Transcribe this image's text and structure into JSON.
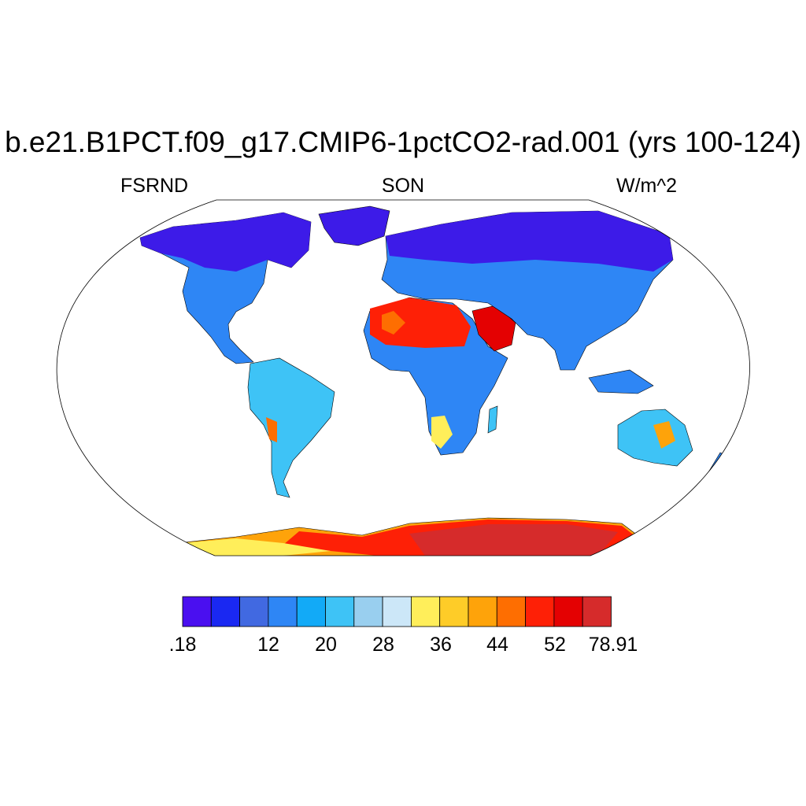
{
  "title": "b.e21.B1PCT.f09_g17.CMIP6-1pctCO2-rad.001 (yrs 100-124)",
  "variable": "FSRND",
  "season": "SON",
  "units": "W/m^2",
  "colorbar": {
    "colors": [
      "#4a0ff0",
      "#1a28f2",
      "#4169e1",
      "#2e86f5",
      "#12aaf7",
      "#3ec3f6",
      "#99cfef",
      "#cce7f8",
      "#ffee5a",
      "#fecc28",
      "#fea30a",
      "#fe6e01",
      "#fe2006",
      "#e40102",
      "#d62b2b"
    ],
    "labels": [
      ".18",
      "12",
      "20",
      "28",
      "36",
      "44",
      "52",
      "78.91"
    ]
  },
  "map": {
    "ocean_color": "#ffffff",
    "regions": [
      "Greenland",
      "North America",
      "South America",
      "Africa",
      "Sahara",
      "Arabian Peninsula",
      "Eurasia",
      "Australia",
      "Antarctica"
    ]
  }
}
